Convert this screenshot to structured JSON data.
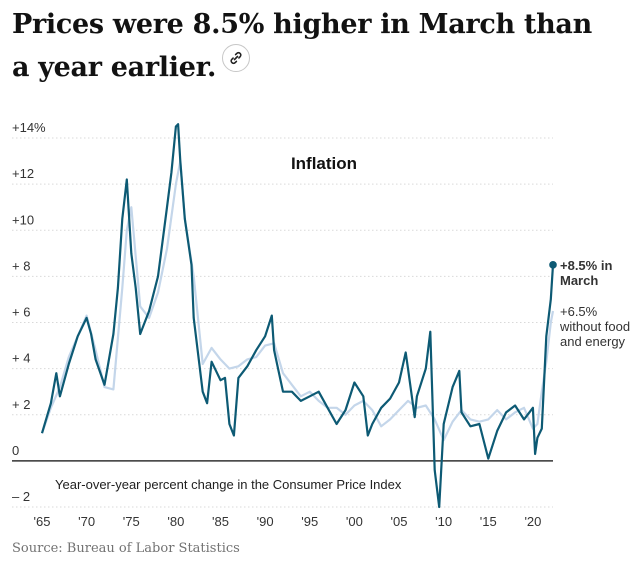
{
  "headline": {
    "text": "Prices were 8.5% higher in March than a year earlier.",
    "link_icon": "link-icon"
  },
  "source": "Source: Bureau of Labor Statistics",
  "colors": {
    "headline_series": "#0d5a74",
    "core_series": "#c4d6ea",
    "gridline": "#d9d9d9",
    "baseline": "#333333"
  },
  "chart_data": {
    "type": "line",
    "title": "Inflation",
    "subtitle": "Year-over-year percent change in the Consumer Price Index",
    "xlim": [
      1965,
      2022.25
    ],
    "ylim": [
      -2,
      14
    ],
    "y_ticks": [
      {
        "value": 14,
        "label": "+14%"
      },
      {
        "value": 12,
        "label": "+12"
      },
      {
        "value": 10,
        "label": "+10"
      },
      {
        "value": 8,
        "label": "+ 8"
      },
      {
        "value": 6,
        "label": "+ 6"
      },
      {
        "value": 4,
        "label": "+ 4"
      },
      {
        "value": 2,
        "label": "+ 2"
      },
      {
        "value": 0,
        "label": "0"
      },
      {
        "value": -2,
        "label": "– 2"
      }
    ],
    "x_ticks": [
      {
        "value": 1965,
        "label": "'65"
      },
      {
        "value": 1970,
        "label": "'70"
      },
      {
        "value": 1975,
        "label": "'75"
      },
      {
        "value": 1980,
        "label": "'80"
      },
      {
        "value": 1985,
        "label": "'85"
      },
      {
        "value": 1990,
        "label": "'90"
      },
      {
        "value": 1995,
        "label": "'95"
      },
      {
        "value": 2000,
        "label": "'00"
      },
      {
        "value": 2005,
        "label": "'05"
      },
      {
        "value": 2010,
        "label": "'10"
      },
      {
        "value": 2015,
        "label": "'15"
      },
      {
        "value": 2020,
        "label": "'20"
      }
    ],
    "grid": true,
    "series": [
      {
        "key": "core",
        "x": [
          1965,
          1966,
          1967,
          1968,
          1969,
          1970,
          1971,
          1972,
          1973,
          1974,
          1974.5,
          1975,
          1976,
          1977,
          1978,
          1979,
          1980,
          1980.5,
          1981,
          1982,
          1983,
          1984,
          1985,
          1986,
          1987,
          1988,
          1989,
          1990,
          1991,
          1992,
          1993,
          1994,
          1995,
          1996,
          1997,
          1998,
          1999,
          2000,
          2001,
          2002,
          2003,
          2004,
          2005,
          2006,
          2007,
          2008,
          2009,
          2010,
          2011,
          2012,
          2013,
          2014,
          2015,
          2016,
          2017,
          2018,
          2019,
          2020,
          2020.5,
          2021,
          2021.5,
          2022,
          2022.25
        ],
        "y": [
          1.2,
          2.3,
          3.2,
          4.5,
          5.4,
          6.3,
          4.8,
          3.2,
          3.1,
          7.5,
          10.0,
          11.0,
          6.7,
          6.2,
          7.3,
          9.2,
          12.0,
          13.0,
          10.5,
          8.0,
          4.2,
          4.9,
          4.4,
          4.0,
          4.1,
          4.4,
          4.5,
          5.0,
          5.1,
          3.8,
          3.3,
          2.8,
          3.0,
          2.6,
          2.3,
          2.3,
          2.0,
          2.4,
          2.6,
          2.2,
          1.5,
          1.8,
          2.2,
          2.6,
          2.3,
          2.4,
          1.8,
          0.9,
          1.7,
          2.2,
          1.8,
          1.7,
          1.8,
          2.2,
          1.8,
          2.1,
          2.3,
          1.4,
          1.6,
          3.0,
          4.3,
          6.0,
          6.5
        ]
      },
      {
        "key": "headline",
        "x": [
          1965,
          1966,
          1966.6,
          1967,
          1968,
          1969,
          1970,
          1970.5,
          1971,
          1972,
          1973,
          1973.5,
          1974,
          1974.5,
          1975,
          1975.5,
          1976,
          1977,
          1978,
          1979,
          1979.5,
          1980,
          1980.25,
          1980.5,
          1981,
          1981.75,
          1982,
          1983,
          1983.5,
          1984,
          1985,
          1985.5,
          1986,
          1986.5,
          1987,
          1988,
          1989,
          1990,
          1990.75,
          1991,
          1992,
          1993,
          1994,
          1995,
          1996,
          1997,
          1998,
          1999,
          2000,
          2001,
          2001.5,
          2002,
          2003,
          2004,
          2005,
          2005.75,
          2006,
          2006.75,
          2007,
          2008,
          2008.5,
          2009,
          2009.5,
          2010,
          2011,
          2011.75,
          2012,
          2013,
          2014,
          2015,
          2016,
          2017,
          2018,
          2019,
          2020,
          2020.25,
          2020.5,
          2021,
          2021.5,
          2022,
          2022.25
        ],
        "y": [
          1.2,
          2.5,
          3.8,
          2.8,
          4.2,
          5.4,
          6.2,
          5.5,
          4.4,
          3.3,
          5.5,
          7.5,
          10.5,
          12.2,
          9.0,
          7.5,
          5.5,
          6.5,
          8.0,
          11.0,
          12.5,
          14.5,
          14.6,
          13.0,
          10.5,
          8.5,
          6.2,
          3.0,
          2.5,
          4.3,
          3.5,
          3.6,
          1.6,
          1.1,
          3.6,
          4.1,
          4.8,
          5.4,
          6.3,
          4.8,
          3.0,
          3.0,
          2.6,
          2.8,
          3.0,
          2.3,
          1.6,
          2.2,
          3.4,
          2.8,
          1.1,
          1.6,
          2.3,
          2.7,
          3.4,
          4.7,
          4.0,
          1.9,
          2.8,
          4.0,
          5.6,
          -0.4,
          -2.0,
          1.6,
          3.2,
          3.9,
          2.1,
          1.5,
          1.6,
          0.1,
          1.3,
          2.1,
          2.4,
          1.8,
          2.3,
          0.3,
          1.0,
          1.4,
          5.4,
          7.0,
          8.5
        ]
      }
    ],
    "annotations": [
      {
        "series": "headline",
        "lines": [
          "+8.5% in",
          "March"
        ],
        "bold": true
      },
      {
        "series": "core",
        "lines": [
          "+6.5%",
          "without food",
          "and energy"
        ],
        "bold": false
      }
    ]
  }
}
